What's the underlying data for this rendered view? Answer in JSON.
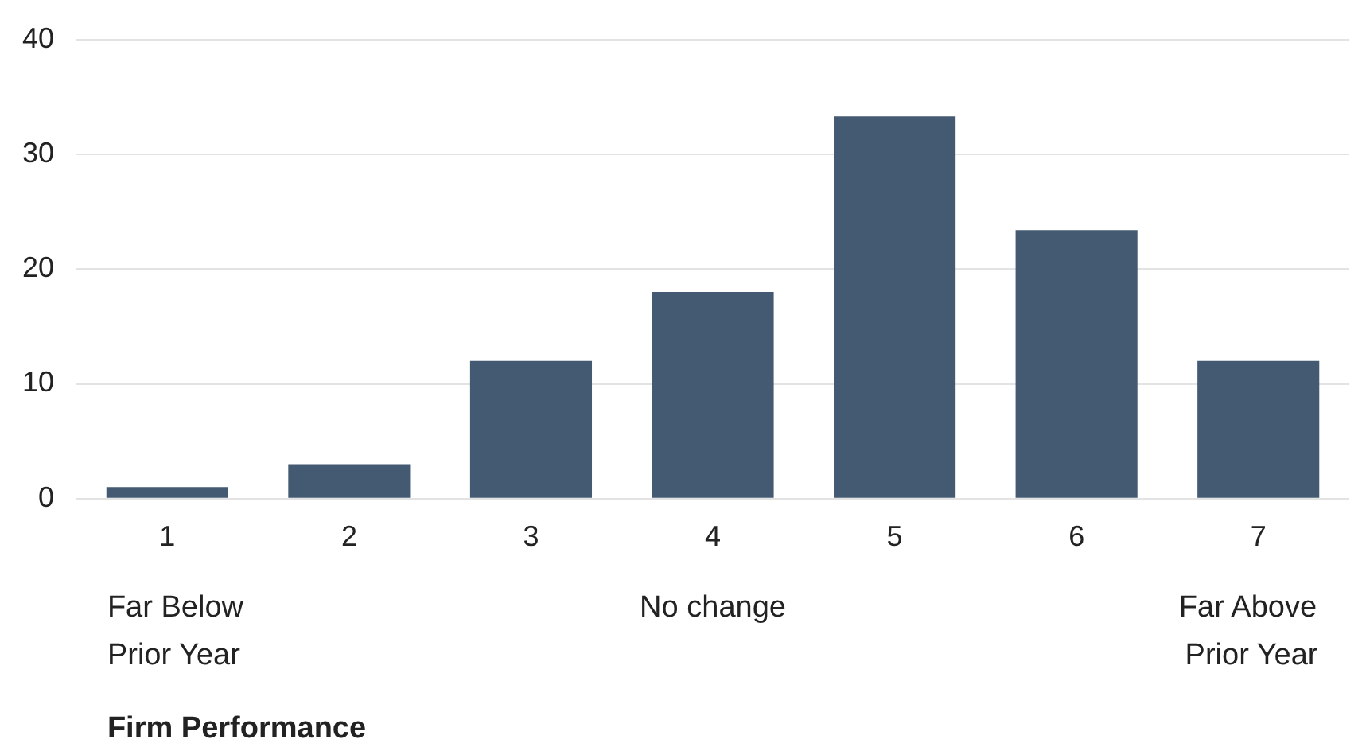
{
  "chart_data": {
    "type": "bar",
    "categories": [
      "1",
      "2",
      "3",
      "4",
      "5",
      "6",
      "7"
    ],
    "values": [
      1,
      3,
      12,
      18,
      33.3,
      23.4,
      12
    ],
    "color": "#445a72",
    "ylim": [
      0,
      40
    ],
    "yticks": [
      0,
      10,
      20,
      30,
      40
    ],
    "grid": "y",
    "legend": false,
    "annotations": [
      "Far Below Prior Year",
      "No change",
      "Far Above Prior Year",
      "Firm Performance"
    ]
  }
}
